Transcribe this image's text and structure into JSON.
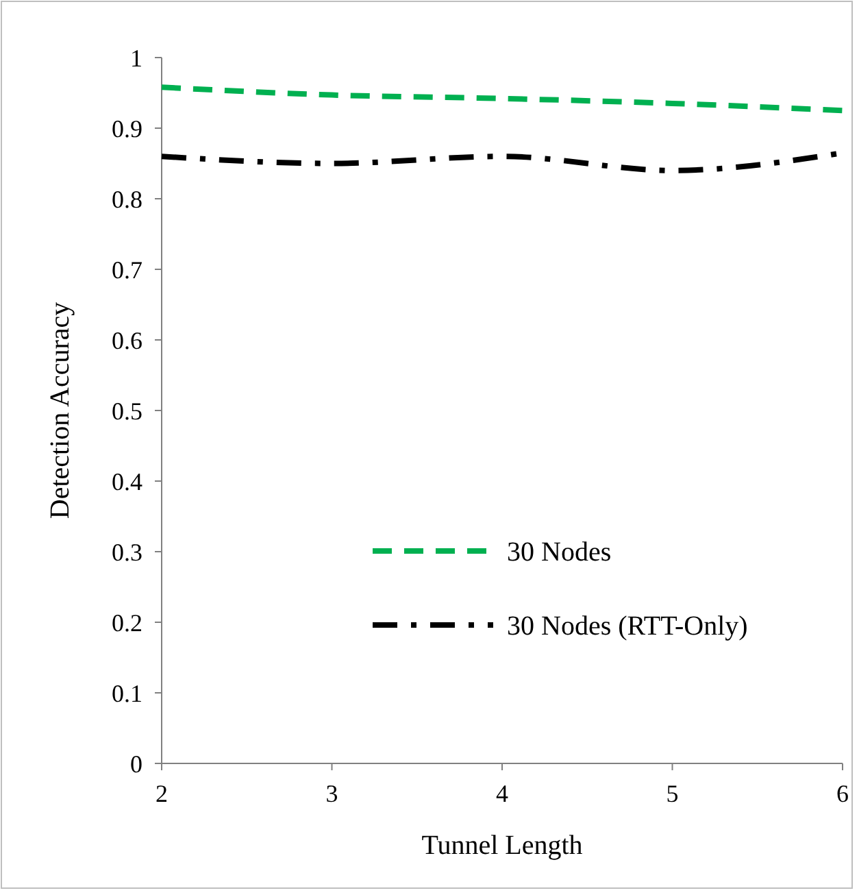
{
  "chart_data": {
    "type": "line",
    "xlabel": "Tunnel Length",
    "ylabel": "Detection Accuracy",
    "x": [
      2,
      3,
      4,
      5,
      6
    ],
    "series": [
      {
        "name": "30 Nodes",
        "color": "#00b050",
        "values": [
          0.958,
          0.947,
          0.942,
          0.935,
          0.925
        ],
        "line_style": "dashed"
      },
      {
        "name": "30 Nodes (RTT-Only)",
        "color": "#000000",
        "values": [
          0.86,
          0.85,
          0.86,
          0.84,
          0.865
        ],
        "line_style": "dashdot"
      }
    ],
    "xlim": [
      2,
      6
    ],
    "xticks": [
      2,
      3,
      4,
      5,
      6
    ],
    "ylim": [
      0,
      1
    ],
    "yticks": [
      0,
      0.1,
      0.2,
      0.3,
      0.4,
      0.5,
      0.6,
      0.7,
      0.8,
      0.9,
      1
    ],
    "grid": false,
    "legend": "bottom"
  }
}
